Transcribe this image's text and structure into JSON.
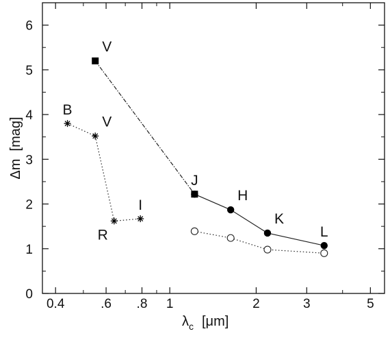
{
  "chart_data": {
    "type": "line",
    "x_scale": "log",
    "xlabel": "λ",
    "xlabel_subscript": "c",
    "xlabel_unit": "[μm]",
    "ylabel": "Δm  [mag]",
    "xlim": [
      0.36,
      5.6
    ],
    "ylim": [
      0,
      6.5
    ],
    "x_ticks": [
      {
        "value": 0.4,
        "label": "0.4"
      },
      {
        "value": 0.6,
        "label": ".6"
      },
      {
        "value": 0.8,
        "label": ".8"
      },
      {
        "value": 1,
        "label": "1"
      },
      {
        "value": 2,
        "label": "2"
      },
      {
        "value": 3,
        "label": "3"
      },
      {
        "value": 5,
        "label": "5"
      }
    ],
    "x_minor_ticks": [
      0.5,
      0.7,
      0.9,
      4
    ],
    "y_ticks": [
      {
        "value": 0,
        "label": "0"
      },
      {
        "value": 1,
        "label": "1"
      },
      {
        "value": 2,
        "label": "2"
      },
      {
        "value": 3,
        "label": "3"
      },
      {
        "value": 4,
        "label": "4"
      },
      {
        "value": 5,
        "label": "5"
      },
      {
        "value": 6,
        "label": "6"
      }
    ],
    "grid": false,
    "series": [
      {
        "marker": "asterisk",
        "line": "dotted",
        "points": [
          {
            "x": 0.44,
            "y": 3.8,
            "label": "B",
            "label_pos": "above"
          },
          {
            "x": 0.55,
            "y": 3.52,
            "label": "V",
            "label_pos": "above-right"
          },
          {
            "x": 0.64,
            "y": 1.62,
            "label": "R",
            "label_pos": "below-left"
          },
          {
            "x": 0.79,
            "y": 1.67,
            "label": "I",
            "label_pos": "above"
          }
        ]
      },
      {
        "marker": "square-filled",
        "line": "dash-dot",
        "points": [
          {
            "x": 0.55,
            "y": 5.2,
            "label": "V",
            "label_pos": "above-right"
          },
          {
            "x": 1.22,
            "y": 2.22,
            "label": "J",
            "label_pos": "above"
          }
        ]
      },
      {
        "marker": "circle-filled",
        "line": "solid",
        "points": [
          {
            "x": 1.22,
            "y": 2.22,
            "label": "",
            "label_pos": "none"
          },
          {
            "x": 1.63,
            "y": 1.87,
            "label": "H",
            "label_pos": "above-right"
          },
          {
            "x": 2.19,
            "y": 1.35,
            "label": "K",
            "label_pos": "above-right"
          },
          {
            "x": 3.45,
            "y": 1.07,
            "label": "L",
            "label_pos": "above"
          }
        ]
      },
      {
        "marker": "circle-open",
        "line": "dotted",
        "points": [
          {
            "x": 1.22,
            "y": 1.39,
            "label": "",
            "label_pos": "none"
          },
          {
            "x": 1.63,
            "y": 1.24,
            "label": "",
            "label_pos": "none"
          },
          {
            "x": 2.19,
            "y": 0.98,
            "label": "",
            "label_pos": "none"
          },
          {
            "x": 3.45,
            "y": 0.9,
            "label": "",
            "label_pos": "none"
          }
        ]
      }
    ]
  }
}
